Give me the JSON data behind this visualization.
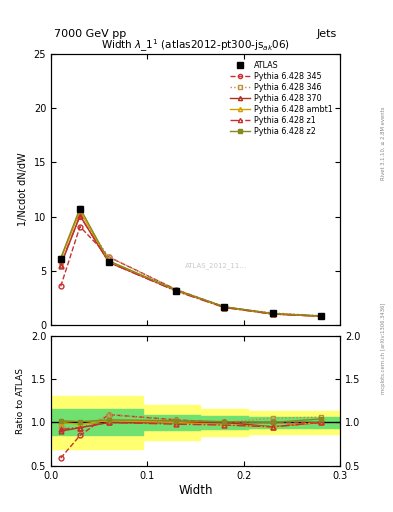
{
  "title": "Width $\\lambda\\_1^1$ (atlas2012-pt300-js$_{ak}$06)",
  "top_left_label": "7000 GeV pp",
  "top_right_label": "Jets",
  "right_label_upper": "Rivet 3.1.10, ≥ 2.8M events",
  "right_label_lower": "mcplots.cern.ch [arXiv:1306.3436]",
  "watermark": "ATLAS_2012_11...",
  "xlabel": "Width",
  "ylabel_main": "1/Ncdot dN/dW",
  "ylabel_ratio": "Ratio to ATLAS",
  "xlim": [
    0.0,
    0.3
  ],
  "ylim_main": [
    0,
    25
  ],
  "ylim_ratio": [
    0.5,
    2.0
  ],
  "x_data": [
    0.01,
    0.03,
    0.06,
    0.13,
    0.18,
    0.23,
    0.28
  ],
  "atlas_y": [
    6.1,
    10.7,
    5.8,
    3.2,
    1.7,
    1.1,
    0.85
  ],
  "p345_y": [
    3.6,
    9.1,
    6.3,
    3.3,
    1.7,
    1.1,
    0.85
  ],
  "p346_y": [
    5.8,
    10.0,
    6.3,
    3.3,
    1.7,
    1.15,
    0.9
  ],
  "p370_y": [
    5.5,
    10.1,
    5.8,
    3.2,
    1.7,
    1.05,
    0.85
  ],
  "pambt1_y": [
    6.1,
    10.5,
    5.9,
    3.2,
    1.65,
    1.05,
    0.85
  ],
  "pz1_y": [
    5.6,
    10.1,
    5.8,
    3.15,
    1.65,
    1.05,
    0.85
  ],
  "pz2_y": [
    6.2,
    10.8,
    5.95,
    3.25,
    1.72,
    1.1,
    0.88
  ],
  "ratio_345": [
    0.59,
    0.85,
    1.09,
    1.03,
    1.0,
    1.0,
    1.0
  ],
  "ratio_346": [
    0.95,
    0.93,
    1.09,
    1.03,
    1.0,
    1.05,
    1.06
  ],
  "ratio_370": [
    0.9,
    0.94,
    1.0,
    1.0,
    1.0,
    0.95,
    1.0
  ],
  "ratio_ambt1": [
    1.0,
    0.98,
    1.02,
    1.0,
    0.97,
    0.95,
    1.0
  ],
  "ratio_z1": [
    0.92,
    0.94,
    1.0,
    0.98,
    0.97,
    0.95,
    1.0
  ],
  "ratio_z2": [
    1.02,
    1.01,
    1.03,
    1.02,
    1.01,
    1.0,
    1.04
  ],
  "yellow_band_lo": [
    0.7,
    0.7,
    0.7,
    0.8,
    0.84,
    0.87,
    0.87
  ],
  "yellow_band_hi": [
    1.3,
    1.3,
    1.3,
    1.2,
    1.16,
    1.13,
    1.13
  ],
  "green_band_lo": [
    0.85,
    0.85,
    0.85,
    0.91,
    0.93,
    0.94,
    0.94
  ],
  "green_band_hi": [
    1.15,
    1.15,
    1.15,
    1.09,
    1.07,
    1.06,
    1.06
  ],
  "color_345": "#c83030",
  "color_346": "#c09040",
  "color_370": "#b03020",
  "color_ambt1": "#d4a000",
  "color_z1": "#c83030",
  "color_z2": "#888820",
  "color_atlas": "#000000",
  "yellow_color": "#ffff70",
  "green_color": "#70e070",
  "bg_color": "#ffffff"
}
